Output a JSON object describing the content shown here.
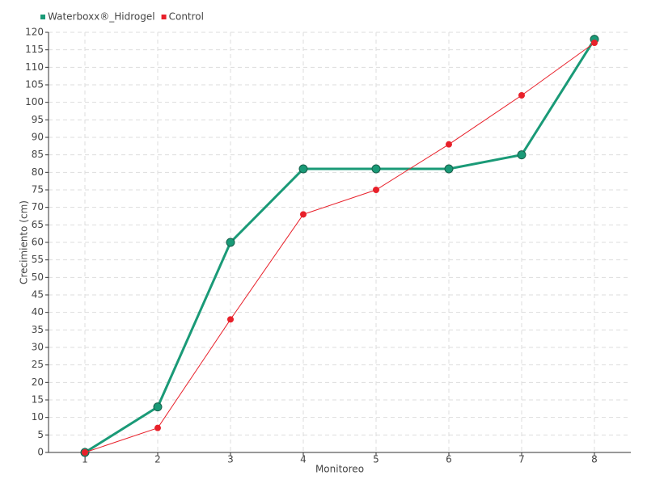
{
  "chart_data": {
    "type": "line",
    "x_label": "Monitoreo",
    "y_label": "Crecimiento (cm)",
    "x": [
      1,
      2,
      3,
      4,
      5,
      6,
      7,
      8
    ],
    "xlim": [
      0.5,
      8.5
    ],
    "xticks": [
      1,
      2,
      3,
      4,
      5,
      6,
      7,
      8
    ],
    "ylim": [
      0,
      120
    ],
    "yticks": [
      0,
      5,
      10,
      15,
      20,
      25,
      30,
      35,
      40,
      45,
      50,
      55,
      60,
      65,
      70,
      75,
      80,
      85,
      90,
      95,
      100,
      105,
      110,
      115,
      120
    ],
    "grid": true,
    "series": [
      {
        "name": "Waterboxx®_Hidrogel",
        "color": "#1a9a77",
        "values": [
          0,
          13,
          60,
          81,
          81,
          81,
          85,
          118
        ]
      },
      {
        "name": "Control",
        "color": "#e8202a",
        "values": [
          0,
          7,
          38,
          68,
          75,
          88,
          102,
          117
        ]
      }
    ]
  }
}
